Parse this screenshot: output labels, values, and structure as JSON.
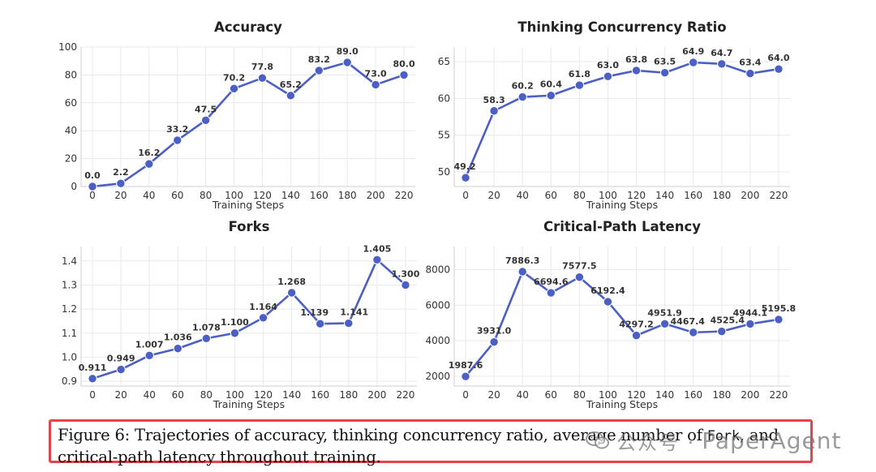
{
  "chart_data": [
    {
      "type": "line",
      "title": "Accuracy",
      "xlabel": "Training Steps",
      "ylabel": "",
      "x": [
        0,
        20,
        40,
        60,
        80,
        100,
        120,
        140,
        160,
        180,
        200,
        220
      ],
      "values": [
        0.0,
        2.2,
        16.2,
        33.2,
        47.5,
        70.2,
        77.8,
        65.2,
        83.2,
        89.0,
        73.0,
        80.0
      ],
      "labels": [
        "0.0",
        "2.2",
        "16.2",
        "33.2",
        "47.5",
        "70.2",
        "77.8",
        "65.2",
        "83.2",
        "89.0",
        "73.0",
        "80.0"
      ],
      "xticks": [
        "0",
        "20",
        "40",
        "60",
        "80",
        "100",
        "120",
        "140",
        "160",
        "180",
        "200",
        "220"
      ],
      "yticks": [
        0,
        20,
        40,
        60,
        80,
        100
      ],
      "ytick_labels": [
        "0",
        "20",
        "40",
        "60",
        "80",
        "100"
      ],
      "xlim": [
        -8,
        228
      ],
      "ylim": [
        0,
        100
      ],
      "grid": true,
      "color": "#4c5fc4"
    },
    {
      "type": "line",
      "title": "Thinking Concurrency Ratio",
      "xlabel": "Training Steps",
      "ylabel": "",
      "x": [
        0,
        20,
        40,
        60,
        80,
        100,
        120,
        140,
        160,
        180,
        200,
        220
      ],
      "values": [
        49.2,
        58.3,
        60.2,
        60.4,
        61.8,
        63.0,
        63.8,
        63.5,
        64.9,
        64.7,
        63.4,
        64.0
      ],
      "labels": [
        "49.2",
        "58.3",
        "60.2",
        "60.4",
        "61.8",
        "63.0",
        "63.8",
        "63.5",
        "64.9",
        "64.7",
        "63.4",
        "64.0"
      ],
      "xticks": [
        "0",
        "20",
        "40",
        "60",
        "80",
        "100",
        "120",
        "140",
        "160",
        "180",
        "200",
        "220"
      ],
      "yticks": [
        50,
        55,
        60,
        65
      ],
      "ytick_labels": [
        "50",
        "55",
        "60",
        "65"
      ],
      "xlim": [
        -8,
        228
      ],
      "ylim": [
        48,
        67
      ],
      "grid": true,
      "color": "#4c5fc4"
    },
    {
      "type": "line",
      "title": "Forks",
      "xlabel": "Training Steps",
      "ylabel": "",
      "x": [
        0,
        20,
        40,
        60,
        80,
        100,
        120,
        140,
        160,
        180,
        200,
        220
      ],
      "values": [
        0.911,
        0.949,
        1.007,
        1.036,
        1.078,
        1.1,
        1.164,
        1.268,
        1.139,
        1.141,
        1.405,
        1.3
      ],
      "labels": [
        "0.911",
        "0.949",
        "1.007",
        "1.036",
        "1.078",
        "1.100",
        "1.164",
        "1.268",
        "1.139",
        "1.141",
        "1.405",
        "1.300"
      ],
      "xticks": [
        "0",
        "20",
        "40",
        "60",
        "80",
        "100",
        "120",
        "140",
        "160",
        "180",
        "200",
        "220"
      ],
      "yticks": [
        0.9,
        1.0,
        1.1,
        1.2,
        1.3,
        1.4
      ],
      "ytick_labels": [
        "0.9",
        "1.0",
        "1.1",
        "1.2",
        "1.3",
        "1.4"
      ],
      "xlim": [
        -8,
        228
      ],
      "ylim": [
        0.88,
        1.46
      ],
      "grid": true,
      "color": "#4c5fc4"
    },
    {
      "type": "line",
      "title": "Critical-Path Latency",
      "xlabel": "Training Steps",
      "ylabel": "",
      "x": [
        0,
        20,
        40,
        60,
        80,
        100,
        120,
        140,
        160,
        180,
        200,
        220
      ],
      "values": [
        1987.6,
        3931.0,
        7886.3,
        6694.6,
        7577.5,
        6192.4,
        4297.2,
        4951.9,
        4467.4,
        4525.4,
        4944.1,
        5195.8
      ],
      "labels": [
        "1987.6",
        "3931.0",
        "7886.3",
        "6694.6",
        "7577.5",
        "6192.4",
        "4297.2",
        "4951.9",
        "4467.4",
        "4525.4",
        "4944.1",
        "5195.8"
      ],
      "xticks": [
        "0",
        "20",
        "40",
        "60",
        "80",
        "100",
        "120",
        "140",
        "160",
        "180",
        "200",
        "220"
      ],
      "yticks": [
        2000,
        4000,
        6000,
        8000
      ],
      "ytick_labels": [
        "2000",
        "4000",
        "6000",
        "8000"
      ],
      "xlim": [
        -8,
        228
      ],
      "ylim": [
        1450,
        9300
      ],
      "grid": true,
      "color": "#4c5fc4"
    }
  ],
  "caption": {
    "before": "Figure 6: Trajectories of accuracy, thinking concurrency ratio, average number of ",
    "code": "Fork",
    "after": ", and critical-path latency throughout training."
  },
  "watermark": {
    "chinese": "公众号 ·",
    "brand": "PaperAgent"
  }
}
